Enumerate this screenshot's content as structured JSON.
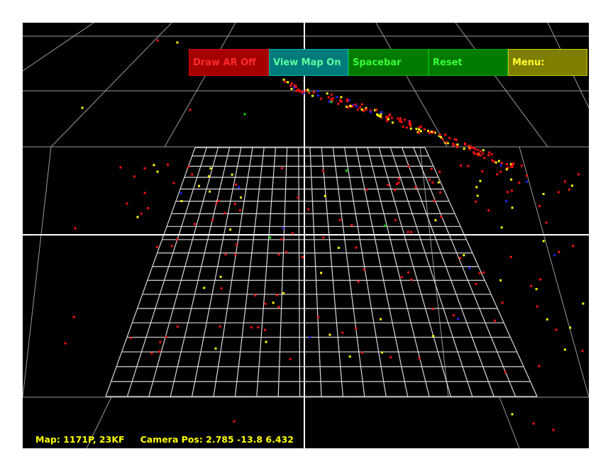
{
  "colors": {
    "background": "#000000",
    "grid": "#d9d9d9",
    "axis": "#ffffff",
    "point_red": "#ff1010",
    "point_yellow": "#ffff00",
    "point_blue": "#2020ff",
    "point_green": "#00e000",
    "status_text": "#ffff00"
  },
  "menu": {
    "draw_ar": "Draw AR Off",
    "view_map": "View Map On",
    "spacebar": "Spacebar",
    "reset": "Reset",
    "menu": "Menu:"
  },
  "status": {
    "map": "Map: 1171P, 23KF",
    "camera_pos": "Camera Pos: 2.785 -13.8 6.432"
  }
}
